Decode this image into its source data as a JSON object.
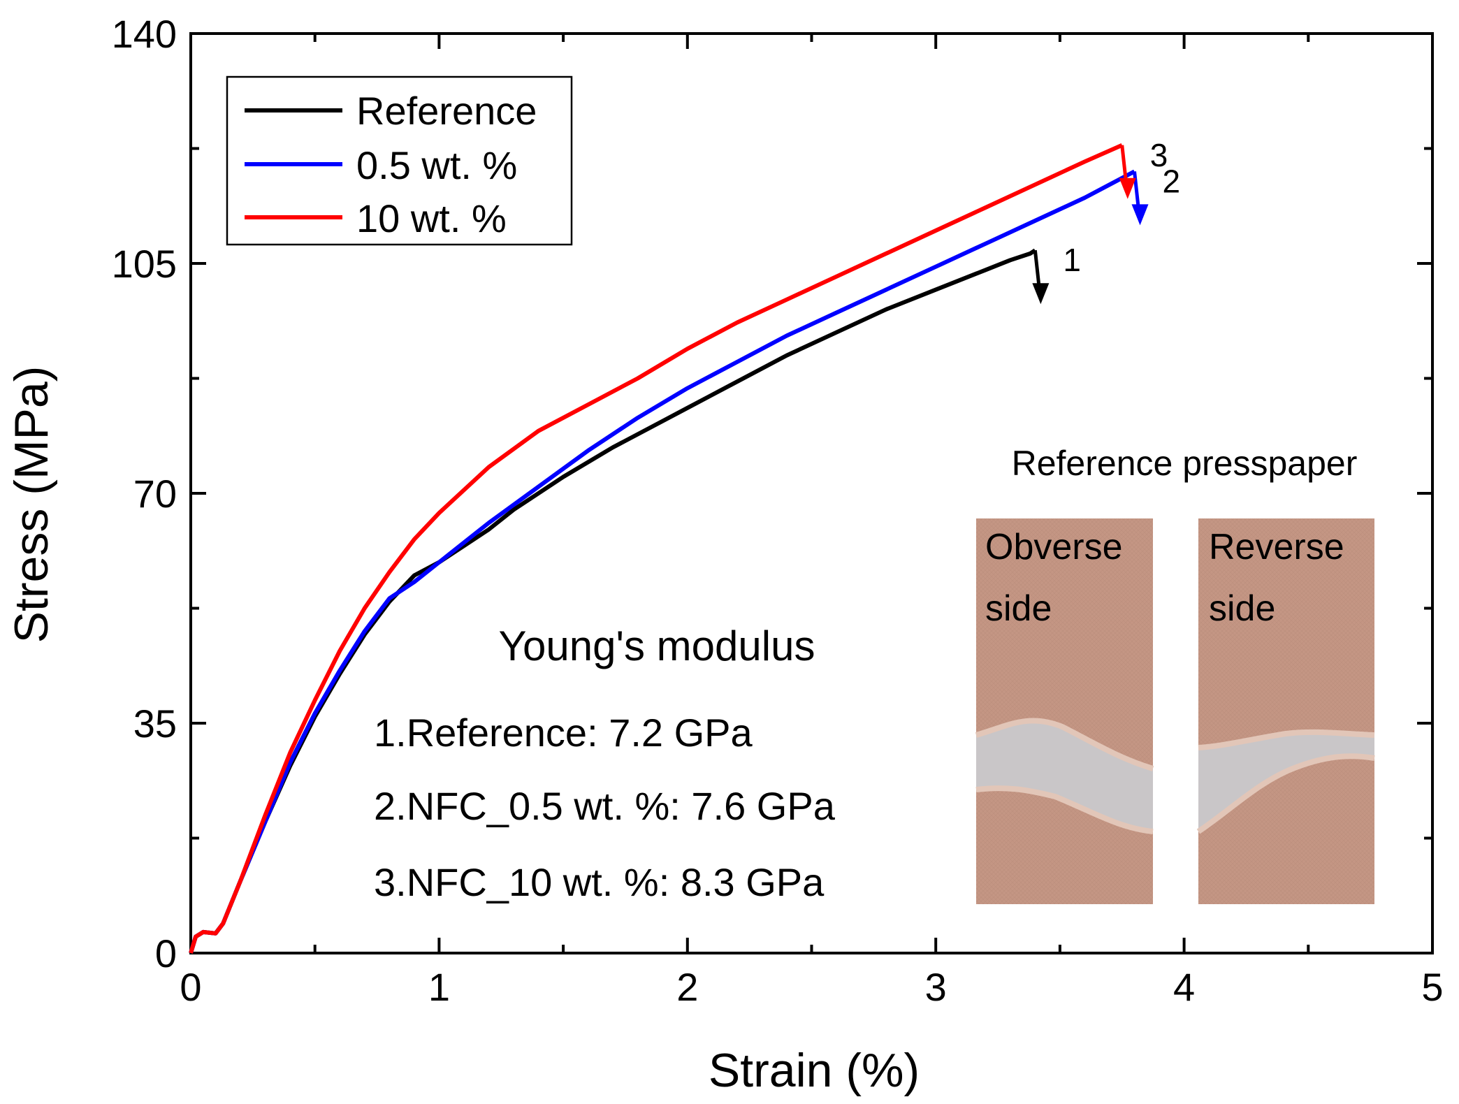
{
  "chart_data": {
    "type": "line",
    "xlabel": "Strain (%)",
    "ylabel": "Stress (MPa)",
    "xlim": [
      0,
      5
    ],
    "ylim": [
      0,
      140
    ],
    "xticks": [
      0,
      1,
      2,
      3,
      4,
      5
    ],
    "yticks": [
      0,
      35,
      70,
      105,
      140
    ],
    "grid": false,
    "legend_position": "top-left",
    "series": [
      {
        "name": "Reference",
        "color": "#000000",
        "marker_label": "1",
        "x": [
          0,
          0.02,
          0.05,
          0.1,
          0.13,
          0.2,
          0.3,
          0.4,
          0.5,
          0.6,
          0.7,
          0.8,
          0.9,
          1.0,
          1.1,
          1.2,
          1.3,
          1.4,
          1.5,
          1.7,
          1.9,
          2.0,
          2.2,
          2.4,
          2.6,
          2.8,
          3.0,
          3.2,
          3.3,
          3.38,
          3.4
        ],
        "y": [
          0,
          2.5,
          3.2,
          3.0,
          4.5,
          11,
          20,
          28.5,
          36,
          42.5,
          48.5,
          53.5,
          57.5,
          59.5,
          62,
          64.5,
          67.5,
          70,
          72.5,
          77,
          81,
          83,
          87,
          91,
          94.5,
          98,
          101,
          104,
          105.5,
          106.5,
          107
        ]
      },
      {
        "name": "0.5 wt. %",
        "color": "#0000ff",
        "marker_label": "2",
        "x": [
          0,
          0.02,
          0.05,
          0.1,
          0.13,
          0.2,
          0.3,
          0.4,
          0.5,
          0.6,
          0.7,
          0.8,
          0.9,
          1.0,
          1.2,
          1.4,
          1.6,
          1.8,
          2.0,
          2.2,
          2.4,
          2.6,
          2.8,
          3.0,
          3.2,
          3.4,
          3.6,
          3.7,
          3.8
        ],
        "y": [
          0,
          2.5,
          3.2,
          3.0,
          4.5,
          11,
          20,
          29,
          36.5,
          43,
          49,
          54,
          56.5,
          59.5,
          65.5,
          71,
          76.5,
          81.5,
          86,
          90,
          94,
          97.5,
          101,
          104.5,
          108,
          111.5,
          115,
          117,
          119
        ]
      },
      {
        "name": "10 wt. %",
        "color": "#ff0000",
        "marker_label": "3",
        "x": [
          0,
          0.02,
          0.05,
          0.1,
          0.13,
          0.2,
          0.3,
          0.4,
          0.5,
          0.6,
          0.7,
          0.8,
          0.9,
          1.0,
          1.2,
          1.4,
          1.6,
          1.8,
          2.0,
          2.2,
          2.4,
          2.6,
          2.8,
          3.0,
          3.2,
          3.4,
          3.6,
          3.75
        ],
        "y": [
          0,
          2.5,
          3.2,
          3.0,
          4.5,
          11,
          21,
          30.5,
          38.5,
          46,
          52.5,
          58,
          63,
          67,
          74,
          79.5,
          83.5,
          87.5,
          92,
          96,
          99.5,
          103,
          106.5,
          110,
          113.5,
          117,
          120.5,
          123
        ]
      }
    ],
    "annotations": {
      "modulus_title": "Young's modulus",
      "modulus_lines": [
        "1.Reference: 7.2 GPa",
        "2.NFC_0.5 wt. %: 7.6 GPa",
        "3.NFC_10 wt. %: 8.3 GPa"
      ],
      "inset_title": "Reference presspaper",
      "inset_left_label_1": "Obverse",
      "inset_left_label_2": "side",
      "inset_right_label_1": "Reverse",
      "inset_right_label_2": "side"
    },
    "colors": {
      "sample_background": "#c49684",
      "sample_gap": "#c9c6c8",
      "tear_edge": "#e2c6b8"
    }
  }
}
